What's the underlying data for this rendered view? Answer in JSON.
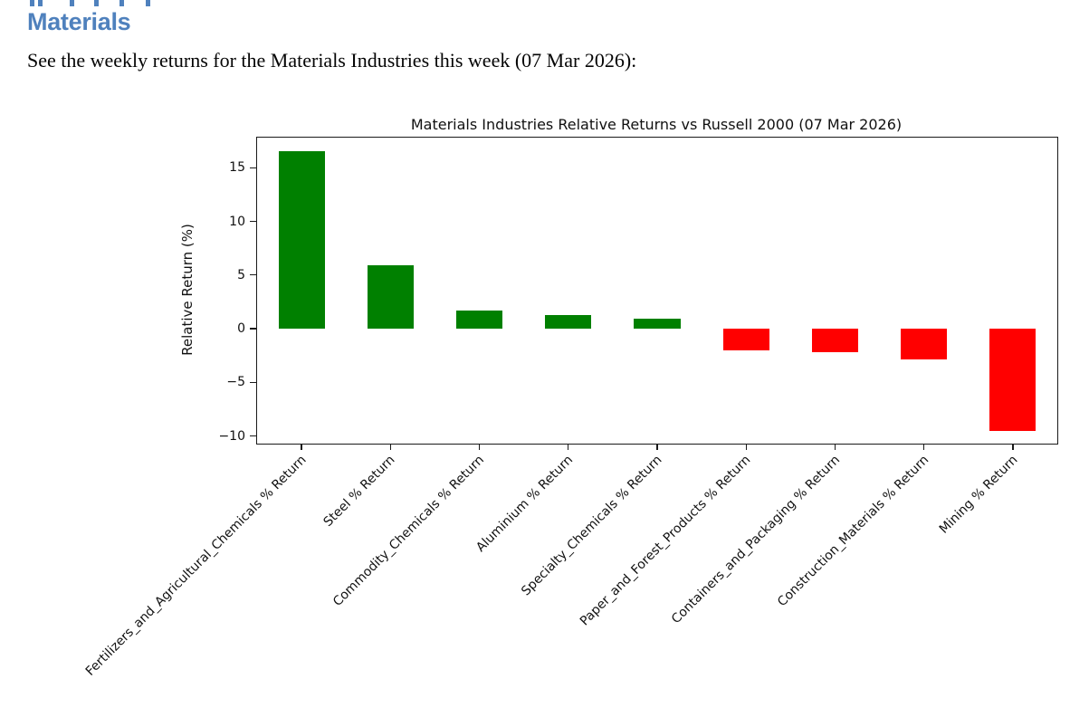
{
  "page": {
    "heading": "Materials",
    "heading_color": "#4F81BD",
    "intro": "See the weekly returns for the Materials Industries this week (07 Mar 2026):"
  },
  "chart_data": {
    "type": "bar",
    "title": "Materials Industries Relative Returns vs Russell 2000 (07 Mar 2026)",
    "xlabel": "",
    "ylabel": "Relative Return (%)",
    "categories": [
      "Fertilizers_and_Agricultural_Chemicals % Return",
      "Steel % Return",
      "Commodity_Chemicals % Return",
      "Aluminium % Return",
      "Specialty_Chemicals % Return",
      "Paper_and_Forest_Products % Return",
      "Containers_and_Packaging % Return",
      "Construction_Materials % Return",
      "Mining % Return"
    ],
    "values": [
      16.5,
      5.9,
      1.7,
      1.3,
      0.9,
      -2.0,
      -2.2,
      -2.9,
      -9.5
    ],
    "yticks": [
      15,
      10,
      5,
      0,
      -5,
      -10
    ],
    "ylim": [
      -10.7,
      17.8
    ],
    "bar_colors": {
      "positive": "#008000",
      "negative": "#ff0000"
    },
    "grid": false,
    "legend": false,
    "xtick_rotation_deg": 45,
    "bar_width_fraction": 0.52
  }
}
